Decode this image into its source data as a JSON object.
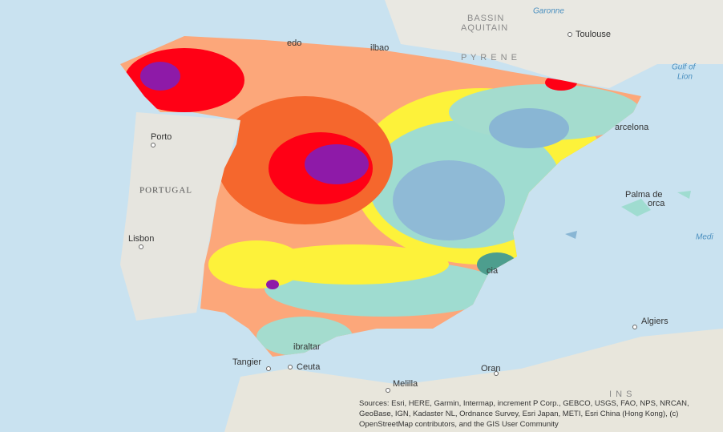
{
  "labels": [
    "BASSIN",
    "AQUITAIN",
    "Garonne",
    "Toulouse",
    "P Y R E N E",
    "Gulf of",
    "Lion",
    "arcelona",
    "Porto",
    "PORTUGAL",
    "Lisbon",
    "Palma de",
    "orca",
    "Medi",
    "cia",
    "Algiers",
    "Tangier",
    "ibraltar",
    "Ceuta",
    "Melilla",
    "Oran",
    "edo",
    "ilbao",
    "I N S"
  ],
  "attribution": "Sources: Esri, HERE, Garmin, Intermap, increment P Corp., GEBCO, USGS, FAO, NPS, NRCAN, GeoBase, IGN, Kadaster NL, Ordnance Survey, Esri Japan, METI, Esri China (Hong Kong), (c) OpenStreetMap contributors, and the GIS User Community"
}
